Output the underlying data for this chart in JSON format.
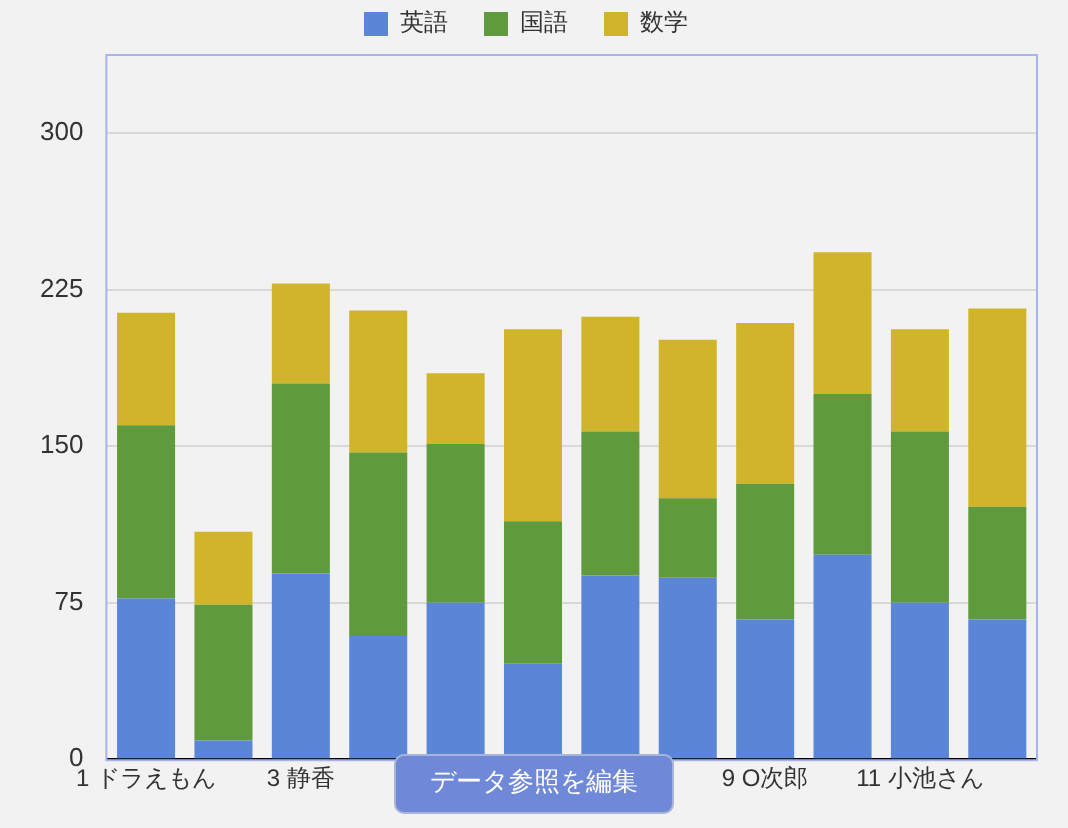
{
  "chart_data": {
    "type": "bar",
    "stacked": true,
    "categories": [
      "1 ドラえもん",
      null,
      "3 静香",
      null,
      null,
      null,
      null,
      null,
      "9 O次郎",
      null,
      "11 小池さん",
      null
    ],
    "series": [
      {
        "name": "英語",
        "color": "#5b86d8",
        "values": [
          77,
          9,
          89,
          59,
          75,
          46,
          88,
          87,
          67,
          98,
          75,
          67
        ]
      },
      {
        "name": "国語",
        "color": "#5f9a3c",
        "values": [
          83,
          65,
          91,
          88,
          76,
          68,
          69,
          38,
          65,
          77,
          82,
          54
        ]
      },
      {
        "name": "数学",
        "color": "#d0b52a",
        "values": [
          54,
          35,
          48,
          68,
          34,
          92,
          55,
          76,
          77,
          68,
          49,
          95
        ]
      }
    ],
    "ylim": [
      0,
      337
    ],
    "yticks": [
      0,
      75,
      150,
      225,
      300
    ],
    "grid": "y",
    "legend": "top",
    "annotations": [
      "データ参照を編集"
    ]
  }
}
